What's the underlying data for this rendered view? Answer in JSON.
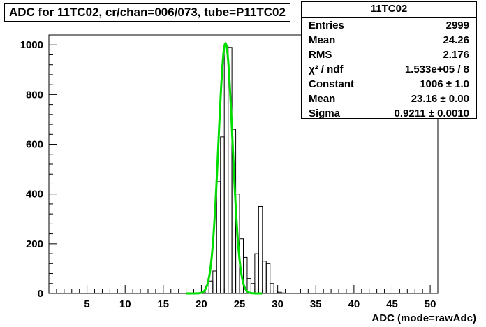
{
  "title": "ADC for 11TC02,  cr/chan=006/073,  tube=P11TC02",
  "stats": {
    "name": "11TC02",
    "rows": [
      {
        "label": "Entries",
        "value": "2999"
      },
      {
        "label": "Mean",
        "value": "24.26"
      },
      {
        "label": "RMS",
        "value": "2.176"
      },
      {
        "label": "χ² / ndf",
        "value": "1.533e+05 / 8"
      },
      {
        "label": "Constant",
        "value": "1006 ± 1.0"
      },
      {
        "label": "Mean",
        "value": "23.16 ± 0.00"
      },
      {
        "label": "Sigma",
        "value": "0.9211 ± 0.0010"
      }
    ]
  },
  "chart_data": {
    "type": "histogram",
    "xlabel": "ADC (mode=rawAdc)",
    "xlim": [
      0,
      51
    ],
    "ylim": [
      0,
      1040
    ],
    "x_ticks": [
      5,
      10,
      15,
      20,
      25,
      30,
      35,
      40,
      45,
      50
    ],
    "y_ticks": [
      0,
      200,
      400,
      600,
      800,
      1000
    ],
    "bin_width": 0.5,
    "bins": [
      {
        "x0": 18.0,
        "value": 0
      },
      {
        "x0": 20.0,
        "value": 5
      },
      {
        "x0": 20.5,
        "value": 30
      },
      {
        "x0": 21.0,
        "value": 50
      },
      {
        "x0": 21.5,
        "value": 90
      },
      {
        "x0": 22.0,
        "value": 450
      },
      {
        "x0": 22.5,
        "value": 630
      },
      {
        "x0": 23.0,
        "value": 995
      },
      {
        "x0": 23.5,
        "value": 990
      },
      {
        "x0": 24.0,
        "value": 660
      },
      {
        "x0": 24.5,
        "value": 400
      },
      {
        "x0": 25.0,
        "value": 220
      },
      {
        "x0": 25.5,
        "value": 145
      },
      {
        "x0": 26.0,
        "value": 60
      },
      {
        "x0": 26.5,
        "value": 40
      },
      {
        "x0": 27.0,
        "value": 160
      },
      {
        "x0": 27.5,
        "value": 350
      },
      {
        "x0": 28.0,
        "value": 130
      },
      {
        "x0": 28.5,
        "value": 120
      },
      {
        "x0": 29.0,
        "value": 40
      },
      {
        "x0": 29.5,
        "value": 10
      },
      {
        "x0": 30.0,
        "value": 5
      },
      {
        "x0": 30.5,
        "value": 2
      },
      {
        "x0": 31.0,
        "value": 0
      }
    ],
    "fit": {
      "type": "gaus",
      "constant": 1006,
      "mean": 23.16,
      "sigma": 0.9211,
      "range": [
        18,
        28
      ],
      "color": "#00dd00"
    }
  },
  "colors": {
    "fit": "#00dd00",
    "hist": "#000000"
  }
}
